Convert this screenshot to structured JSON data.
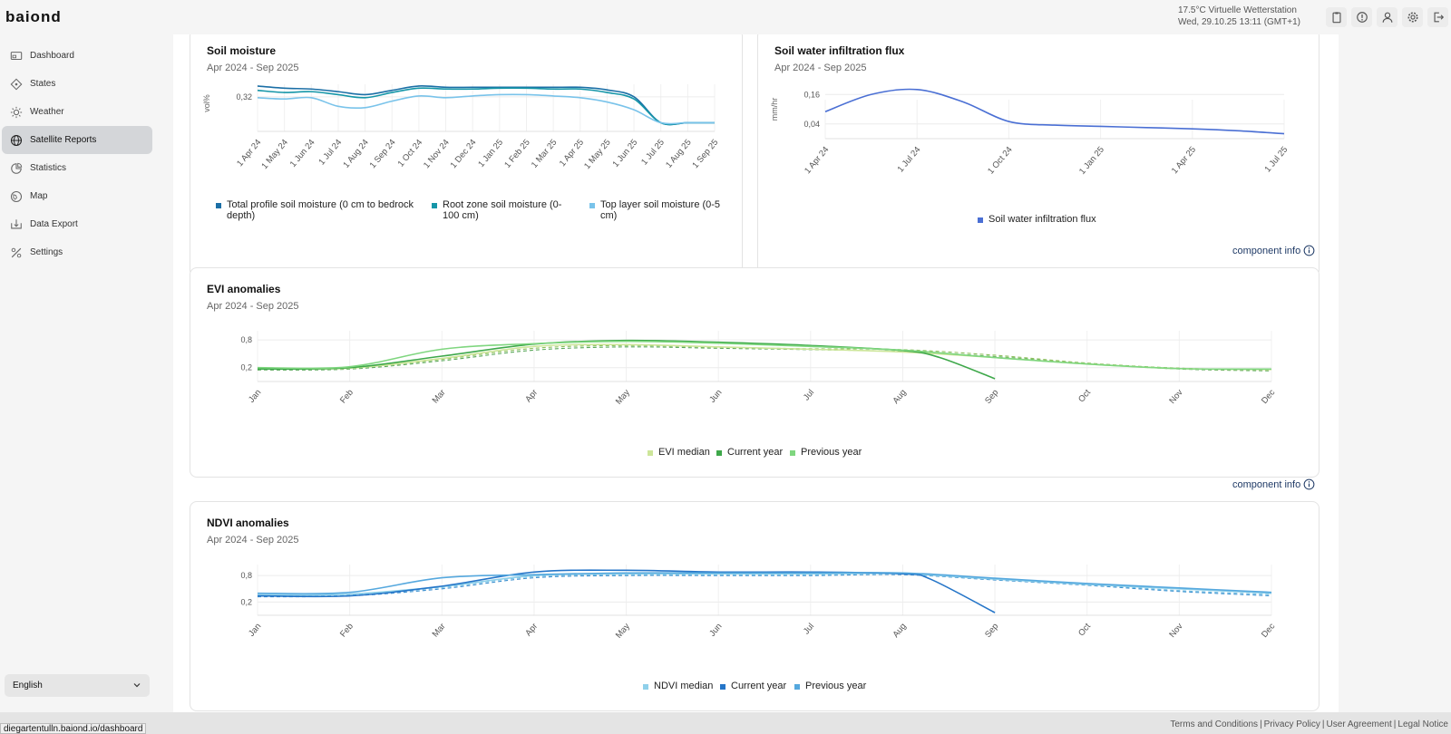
{
  "app": {
    "logo": "baiond"
  },
  "header": {
    "weather_line": "17.5°C Virtuelle Wetterstation",
    "date_line": "Wed, 29.10.25 13:11 (GMT+1)",
    "icons": [
      "clipboard-icon",
      "alert-icon",
      "user-icon",
      "gear-icon",
      "logout-icon"
    ]
  },
  "sidebar": {
    "items": [
      {
        "label": "Dashboard",
        "icon": "dashboard-icon"
      },
      {
        "label": "States",
        "icon": "states-icon"
      },
      {
        "label": "Weather",
        "icon": "sun-icon"
      },
      {
        "label": "Satellite Reports",
        "icon": "globe-icon",
        "active": true
      },
      {
        "label": "Statistics",
        "icon": "statistics-icon"
      },
      {
        "label": "Map",
        "icon": "map-icon"
      },
      {
        "label": "Data Export",
        "icon": "export-icon"
      },
      {
        "label": "Settings",
        "icon": "settings-icon"
      }
    ],
    "language": "English"
  },
  "component_info_label": "component info",
  "footer": {
    "status_url": "diegartentulln.baiond.io/dashboard",
    "links": [
      "Terms and Conditions",
      "Privacy Policy",
      "User Agreement",
      "Legal Notice"
    ]
  },
  "colors": {
    "soil_total": "#1b6fa6",
    "soil_root": "#1596a8",
    "soil_top": "#79c3ea",
    "flux": "#4a6fd4",
    "evi_median": "#cde69a",
    "evi_current": "#3ea84a",
    "evi_previous": "#7fd67f",
    "ndvi_median": "#8fd0ea",
    "ndvi_current": "#2575c8",
    "ndvi_previous": "#55a8de"
  },
  "chart_data": [
    {
      "id": "soil",
      "type": "line",
      "title": "Soil moisture",
      "subtitle": "Apr 2024 - Sep 2025",
      "ylabel": "vol%",
      "yticks": [
        "0,32"
      ],
      "categories": [
        "1 Apr 24",
        "1 May 24",
        "1 Jun 24",
        "1 Jul 24",
        "1 Aug 24",
        "1 Sep 24",
        "1 Oct 24",
        "1 Nov 24",
        "1 Dec 24",
        "1 Jan 25",
        "1 Feb 25",
        "1 Mar 25",
        "1 Apr 25",
        "1 May 25",
        "1 Jun 25",
        "1 Jul 25",
        "1 Aug 25",
        "1 Sep 25"
      ],
      "series": [
        {
          "name": "Total profile soil moisture (0 cm to bedrock depth)",
          "values": [
            0.345,
            0.34,
            0.338,
            0.332,
            0.325,
            0.335,
            0.345,
            0.342,
            0.342,
            0.342,
            0.342,
            0.342,
            0.342,
            0.336,
            0.32,
            0.26,
            0.26,
            0.26
          ]
        },
        {
          "name": "Root zone soil moisture (0-100 cm)",
          "values": [
            0.335,
            0.33,
            0.332,
            0.325,
            0.318,
            0.33,
            0.34,
            0.338,
            0.338,
            0.34,
            0.34,
            0.338,
            0.338,
            0.33,
            0.315,
            0.26,
            0.26,
            0.26
          ]
        },
        {
          "name": "Top layer soil moisture (0-5 cm)",
          "values": [
            0.318,
            0.315,
            0.318,
            0.298,
            0.295,
            0.31,
            0.322,
            0.318,
            0.322,
            0.325,
            0.325,
            0.322,
            0.318,
            0.308,
            0.29,
            0.26,
            0.26,
            0.26
          ]
        }
      ],
      "ylim": [
        0.24,
        0.37
      ]
    },
    {
      "id": "flux",
      "type": "line",
      "title": "Soil water infiltration flux",
      "subtitle": "Apr 2024 - Sep 2025",
      "ylabel": "mm/hr",
      "yticks": [
        "0,16",
        "0,04"
      ],
      "categories": [
        "1 Apr 24",
        "1 Jul 24",
        "1 Oct 24",
        "1 Jan 25",
        "1 Apr 25",
        "1 Jul 25"
      ],
      "series": [
        {
          "name": "Soil water infiltration flux",
          "x": [
            0,
            0.5,
            1,
            1.5,
            2,
            2.5,
            3,
            3.5,
            4,
            4.5,
            5
          ],
          "values": [
            0.09,
            0.16,
            0.18,
            0.13,
            0.05,
            0.035,
            0.03,
            0.025,
            0.02,
            0.012,
            0.0
          ]
        }
      ],
      "ylim": [
        -0.02,
        0.22
      ]
    },
    {
      "id": "evi",
      "type": "line",
      "title": "EVI anomalies",
      "subtitle": "Apr 2024 - Sep 2025",
      "yticks": [
        "0,8",
        "0,2"
      ],
      "categories": [
        "Jan",
        "Feb",
        "Mar",
        "Apr",
        "May",
        "Jun",
        "Jul",
        "Aug",
        "Sep",
        "Oct",
        "Nov",
        "Dec"
      ],
      "series": [
        {
          "name": "EVI median",
          "x": [
            0,
            1,
            2,
            3,
            4,
            5,
            6,
            7,
            8,
            9,
            10,
            11
          ],
          "values": [
            0.18,
            0.19,
            0.4,
            0.66,
            0.7,
            0.65,
            0.6,
            0.54,
            0.42,
            0.28,
            0.18,
            0.16
          ]
        },
        {
          "name": "Current year",
          "x": [
            0,
            1,
            2,
            3,
            4,
            5,
            6,
            7,
            7.4,
            8
          ],
          "values": [
            0.17,
            0.2,
            0.45,
            0.71,
            0.79,
            0.75,
            0.68,
            0.57,
            0.42,
            -0.04
          ]
        },
        {
          "name": "Previous year",
          "x": [
            0,
            1,
            2,
            3,
            4,
            5,
            6,
            7,
            8,
            9,
            10,
            11
          ],
          "values": [
            0.2,
            0.22,
            0.6,
            0.72,
            0.77,
            0.73,
            0.66,
            0.58,
            0.42,
            0.28,
            0.18,
            0.17
          ]
        },
        {
          "name": "",
          "x": [
            0,
            1,
            2,
            3,
            4,
            5,
            6,
            7,
            8,
            9,
            10,
            11
          ],
          "values": [
            0.15,
            0.17,
            0.35,
            0.58,
            0.65,
            0.62,
            0.59,
            0.55,
            0.44,
            0.29,
            0.17,
            0.13
          ],
          "dashed": true
        },
        {
          "name": "",
          "x": [
            0,
            1,
            2,
            3,
            4,
            5,
            6,
            7,
            8,
            9,
            10,
            11
          ],
          "values": [
            0.17,
            0.19,
            0.38,
            0.62,
            0.68,
            0.64,
            0.61,
            0.59,
            0.47,
            0.3,
            0.19,
            0.15
          ],
          "dashed": true
        }
      ],
      "ylim": [
        -0.1,
        1.0
      ]
    },
    {
      "id": "ndvi",
      "type": "line",
      "title": "NDVI anomalies",
      "subtitle": "Apr 2024 - Sep 2025",
      "yticks": [
        "0,8",
        "0,2"
      ],
      "categories": [
        "Jan",
        "Feb",
        "Mar",
        "Apr",
        "May",
        "Jun",
        "Jul",
        "Aug",
        "Sep",
        "Oct",
        "Nov",
        "Dec"
      ],
      "series": [
        {
          "name": "NDVI median",
          "x": [
            0,
            1,
            2,
            3,
            4,
            5,
            6,
            7,
            8,
            9,
            10,
            11
          ],
          "values": [
            0.36,
            0.38,
            0.55,
            0.8,
            0.84,
            0.84,
            0.84,
            0.84,
            0.72,
            0.6,
            0.5,
            0.4
          ]
        },
        {
          "name": "Current year",
          "x": [
            0,
            1,
            2,
            3,
            4,
            5,
            6,
            7,
            7.3,
            8
          ],
          "values": [
            0.34,
            0.34,
            0.56,
            0.88,
            0.92,
            0.88,
            0.88,
            0.84,
            0.72,
            -0.04
          ]
        },
        {
          "name": "Previous year",
          "x": [
            0,
            1,
            2,
            3,
            4,
            5,
            6,
            7,
            8,
            9,
            10,
            11
          ],
          "values": [
            0.4,
            0.42,
            0.75,
            0.82,
            0.86,
            0.86,
            0.86,
            0.86,
            0.74,
            0.62,
            0.52,
            0.42
          ]
        },
        {
          "name": "",
          "x": [
            0,
            1,
            2,
            3,
            4,
            5,
            6,
            7,
            8,
            9,
            10,
            11
          ],
          "values": [
            0.32,
            0.34,
            0.5,
            0.75,
            0.8,
            0.8,
            0.8,
            0.82,
            0.7,
            0.58,
            0.44,
            0.34
          ],
          "dashed": true
        },
        {
          "name": "",
          "x": [
            0,
            1,
            2,
            3,
            4,
            5,
            6,
            7,
            8,
            9,
            10,
            11
          ],
          "values": [
            0.35,
            0.36,
            0.53,
            0.78,
            0.82,
            0.82,
            0.82,
            0.84,
            0.72,
            0.6,
            0.46,
            0.37
          ],
          "dashed": true
        }
      ],
      "ylim": [
        -0.1,
        1.05
      ]
    }
  ]
}
